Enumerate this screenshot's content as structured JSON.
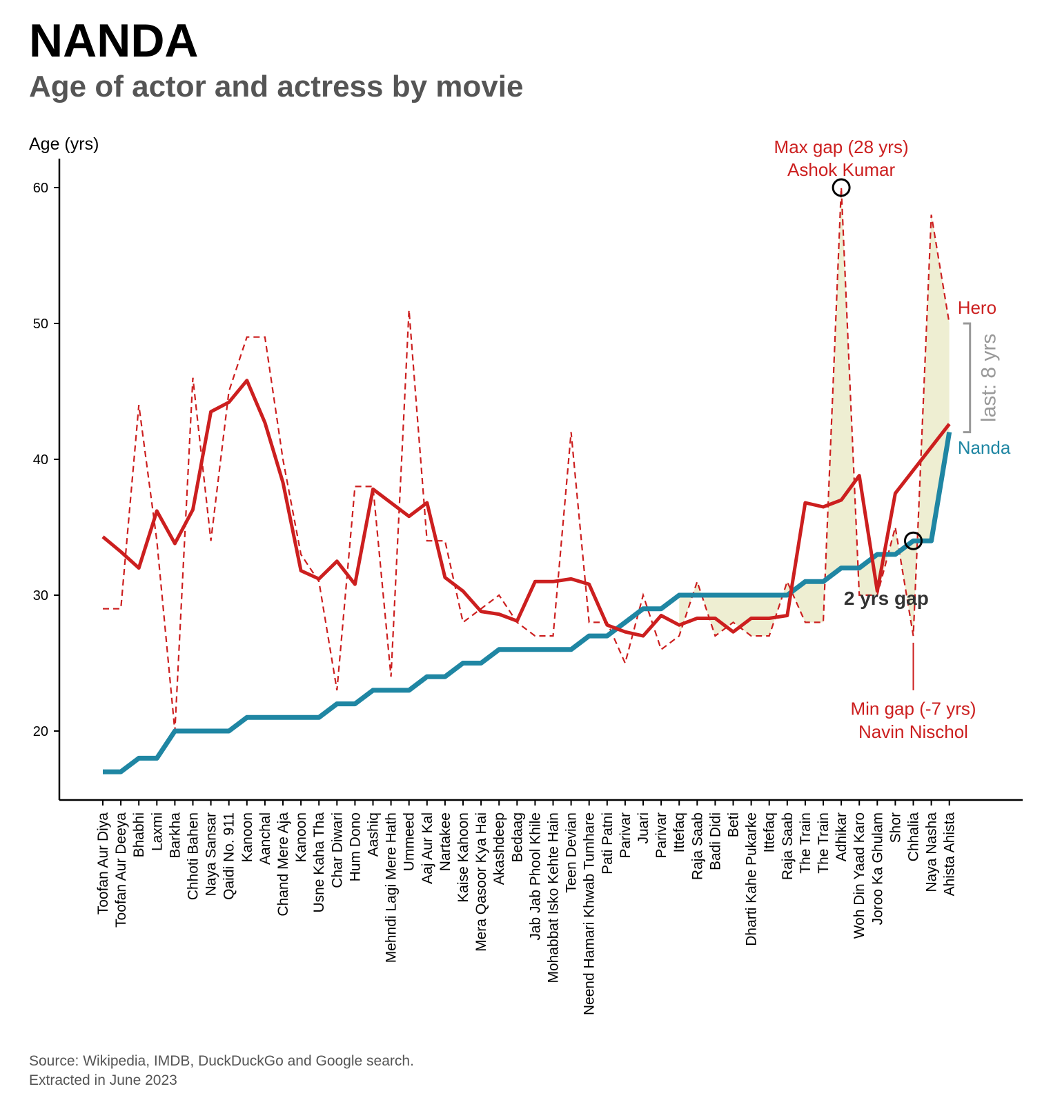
{
  "title": "NANDA",
  "subtitle": "Age of actor and actress by movie",
  "source": {
    "line1": "Source: Wikipedia, IMDB, DuckDuckGo and Google search.",
    "line2": "Extracted in June 2023"
  },
  "colors": {
    "hero": "#cc1f1f",
    "nanda": "#1f86a3",
    "gap_fill": "#eeeed2",
    "axis": "#000000",
    "bracket": "#999999",
    "annotation_dark": "#333333"
  },
  "chart_data": {
    "type": "line",
    "ylabel": "Age (yrs)",
    "ylim": [
      15,
      62
    ],
    "yticks": [
      20,
      30,
      40,
      50,
      60
    ],
    "categories": [
      "Toofan Aur Diya",
      "Toofan Aur Deeya",
      "Bhabhi",
      "Laxmi",
      "Barkha",
      "Chhoti Bahen",
      "Naya Sansar",
      "Qaidi No. 911",
      "Kanoon",
      "Aanchal",
      "Chand Mere Aja",
      "Kanoon",
      "Usne Kaha Tha",
      "Char Diwari",
      "Hum Dono",
      "Aashiq",
      "Mehndi Lagi Mere Hath",
      "Ummeed",
      "Aaj Aur Kal",
      "Nartakee",
      "Kaise Kahoon",
      "Mera Qasoor Kya Hai",
      "Akashdeep",
      "Bedaag",
      "Jab Jab Phool Khile",
      "Mohabbat Isko Kehte Hain",
      "Teen Devian",
      "Neend Hamari Khwab Tumhare",
      "Pati Patni",
      "Parivar",
      "Juari",
      "Parivar",
      "Ittefaq",
      "Raja Saab",
      "Badi Didi",
      "Beti",
      "Dharti Kahe Pukarke",
      "Ittefaq",
      "Raja Saab",
      "The Train",
      "The Train",
      "Adhikar",
      "Woh Din Yaad Karo",
      "Joroo Ka Ghulam",
      "Shor",
      "Chhalia",
      "Naya Nasha",
      "Ahista Ahista"
    ],
    "series": [
      {
        "name": "Hero",
        "style": "dashed",
        "values": [
          29,
          29,
          44,
          34,
          20,
          46,
          34,
          45,
          49,
          49,
          40,
          33,
          31,
          23,
          38,
          38,
          24,
          51,
          34,
          34,
          28,
          29,
          30,
          28,
          27,
          27,
          42,
          28,
          28,
          25,
          30,
          26,
          27,
          31,
          27,
          28,
          27,
          27,
          31,
          28,
          28,
          60,
          30,
          30,
          35,
          27,
          58,
          50
        ]
      },
      {
        "name": "hero_trend",
        "style": "solid",
        "values": [
          34.3,
          33.2,
          32.0,
          36.2,
          33.8,
          36.3,
          43.5,
          44.2,
          45.8,
          42.7,
          38.3,
          31.8,
          31.2,
          32.5,
          30.8,
          37.8,
          36.8,
          35.8,
          36.8,
          31.3,
          30.3,
          28.8,
          28.6,
          28.1,
          31.0,
          31.0,
          31.2,
          30.8,
          27.8,
          27.3,
          27.0,
          28.5,
          27.8,
          28.3,
          28.3,
          27.3,
          28.3,
          28.3,
          28.5,
          36.8,
          36.5,
          37.0,
          38.8,
          30.3,
          37.5,
          39.2,
          40.9,
          42.6
        ]
      },
      {
        "name": "Nanda",
        "style": "solid",
        "values": [
          17,
          17,
          18,
          18,
          20,
          20,
          20,
          20,
          21,
          21,
          21,
          21,
          21,
          22,
          22,
          23,
          23,
          23,
          24,
          24,
          25,
          25,
          26,
          26,
          26,
          26,
          26,
          27,
          27,
          28,
          29,
          29,
          30,
          30,
          30,
          30,
          30,
          30,
          30,
          31,
          31,
          32,
          32,
          33,
          33,
          34,
          34,
          42
        ]
      }
    ],
    "fill_between": {
      "from_index": 32,
      "to_index": 47
    },
    "annotations": {
      "max_gap": {
        "line1": "Max gap (28 yrs)",
        "line2": "Ashok Kumar",
        "index": 41,
        "value": 60
      },
      "min_gap": {
        "line1": "Min gap (-7 yrs)",
        "line2": "Navin Nischol",
        "index": 45,
        "value": 34
      },
      "two_yrs_gap": {
        "text": "2 yrs gap"
      },
      "last_gap": {
        "text": "last: 8 yrs"
      },
      "hero_label": "Hero",
      "nanda_label": "Nanda"
    }
  }
}
